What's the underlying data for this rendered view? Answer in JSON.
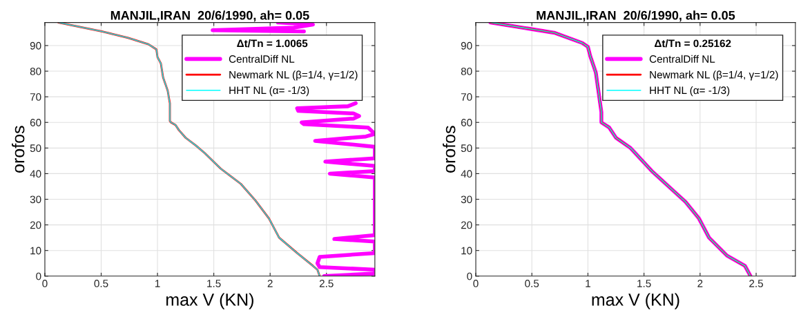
{
  "chart_data": [
    {
      "type": "line",
      "title": "MANJIL,IRAN  20/6/1990, ah= 0.05",
      "xlabel": "max V (KN)",
      "ylabel": "orofos",
      "legend_title": "Δt/Tn = 1.0065",
      "xlim": [
        0,
        2.93
      ],
      "ylim": [
        0,
        99
      ],
      "xticks": [
        0,
        0.5,
        1,
        1.5,
        2,
        2.5
      ],
      "yticks": [
        0,
        10,
        20,
        30,
        40,
        50,
        60,
        70,
        80,
        90
      ],
      "grid": true,
      "legend": "top right",
      "series": [
        {
          "name": "CentralDiff NL",
          "color": "#ff00ff",
          "x": [
            2.48,
            2.93,
            2.93,
            2.44,
            2.42,
            2.44,
            2.93,
            2.93,
            2.57,
            2.93,
            2.93,
            2.53,
            2.93,
            2.93,
            2.49,
            2.93,
            2.93,
            2.4,
            2.85,
            2.93,
            2.87,
            2.3,
            2.28,
            2.74,
            2.79,
            2.74,
            2.25,
            2.24,
            2.69,
            2.76,
            null,
            2.3,
            1.49,
            2.21,
            2.38,
            2.07
          ],
          "values": [
            0,
            1,
            2.5,
            3.5,
            5,
            7.5,
            9,
            13.5,
            14.5,
            16,
            38.5,
            40,
            41,
            43,
            44.7,
            46,
            50.5,
            52.8,
            54.5,
            55.5,
            58,
            59.3,
            60,
            61.5,
            62.5,
            63.5,
            64.5,
            65.5,
            66.3,
            67.5,
            null,
            95.5,
            96,
            97,
            98.2,
            99
          ]
        },
        {
          "name": "Newmark NL (β=1/4, γ=1/2)",
          "color": "#ff0000",
          "x": [
            0.12,
            0.51,
            0.74,
            0.92,
            0.99,
            1.0,
            1.03,
            1.05,
            1.09,
            1.11,
            1.11,
            1.12,
            1.16,
            1.19,
            1.25,
            1.34,
            1.42,
            1.56,
            1.74,
            1.87,
            1.99,
            2.08,
            2.24,
            2.38,
            2.42,
            2.44
          ],
          "values": [
            99,
            95.5,
            93,
            90.5,
            88.5,
            85.5,
            83,
            77.5,
            72.5,
            67.5,
            60.5,
            60,
            59,
            57,
            54,
            51,
            48,
            42,
            36,
            29.5,
            22.5,
            15,
            9,
            4,
            2.5,
            0
          ]
        },
        {
          "name": "HHT NL (α= -1/3)",
          "color": "#00ffff",
          "x": [
            0.12,
            0.51,
            0.74,
            0.92,
            0.99,
            1.0,
            1.03,
            1.05,
            1.09,
            1.11,
            1.11,
            1.12,
            1.16,
            1.19,
            1.25,
            1.34,
            1.42,
            1.56,
            1.74,
            1.87,
            1.99,
            2.08,
            2.24,
            2.38,
            2.42,
            2.44
          ],
          "values": [
            99,
            95.5,
            93,
            90.5,
            88.5,
            85.5,
            83,
            77.5,
            72.5,
            67.5,
            60.5,
            60,
            59,
            57,
            54,
            51,
            48,
            42,
            36,
            29.5,
            22.5,
            15,
            9,
            4,
            2.5,
            0
          ]
        }
      ]
    },
    {
      "type": "line",
      "title": "MANJIL,IRAN  20/6/1990, ah= 0.05",
      "xlabel": "max V (KN)",
      "ylabel": "orofos",
      "legend_title": "Δt/Tn = 0.25162",
      "xlim": [
        0,
        2.85
      ],
      "ylim": [
        0,
        99
      ],
      "xticks": [
        0,
        0.5,
        1,
        1.5,
        2,
        2.5
      ],
      "yticks": [
        0,
        10,
        20,
        30,
        40,
        50,
        60,
        70,
        80,
        90
      ],
      "grid": true,
      "legend": "top right",
      "series": [
        {
          "name": "CentralDiff NL",
          "color": "#ff00ff",
          "x": [
            0.13,
            0.7,
            0.95,
            1.0,
            1.02,
            1.07,
            1.12,
            1.12,
            1.19,
            1.25,
            1.38,
            1.57,
            1.72,
            1.87,
            1.99,
            2.08,
            2.24,
            2.4,
            2.45
          ],
          "values": [
            99,
            95,
            91,
            89.5,
            86,
            79.5,
            64,
            60,
            58,
            54,
            50,
            41,
            35,
            29,
            22.5,
            15,
            8,
            4,
            0
          ]
        },
        {
          "name": "Newmark NL (β=1/4, γ=1/2)",
          "color": "#ff0000",
          "x": [
            0.13,
            0.7,
            0.95,
            1.0,
            1.02,
            1.07,
            1.12,
            1.12,
            1.19,
            1.25,
            1.38,
            1.57,
            1.72,
            1.87,
            1.99,
            2.08,
            2.24,
            2.4,
            2.45
          ],
          "values": [
            99,
            95,
            91,
            89.5,
            86,
            79.5,
            64,
            60,
            58,
            54,
            50,
            41,
            35,
            29,
            22.5,
            15,
            8,
            4,
            0
          ]
        },
        {
          "name": "HHT NL (α= -1/3)",
          "color": "#00ffff",
          "x": [
            0.13,
            0.7,
            0.95,
            1.0,
            1.02,
            1.07,
            1.12,
            1.12,
            1.19,
            1.25,
            1.38,
            1.57,
            1.72,
            1.87,
            1.99,
            2.08,
            2.24,
            2.4,
            2.45
          ],
          "values": [
            99,
            95,
            91,
            89.5,
            86,
            79.5,
            64,
            60,
            58,
            54,
            50,
            41,
            35,
            29,
            22.5,
            15,
            8,
            4,
            0
          ]
        }
      ]
    }
  ]
}
